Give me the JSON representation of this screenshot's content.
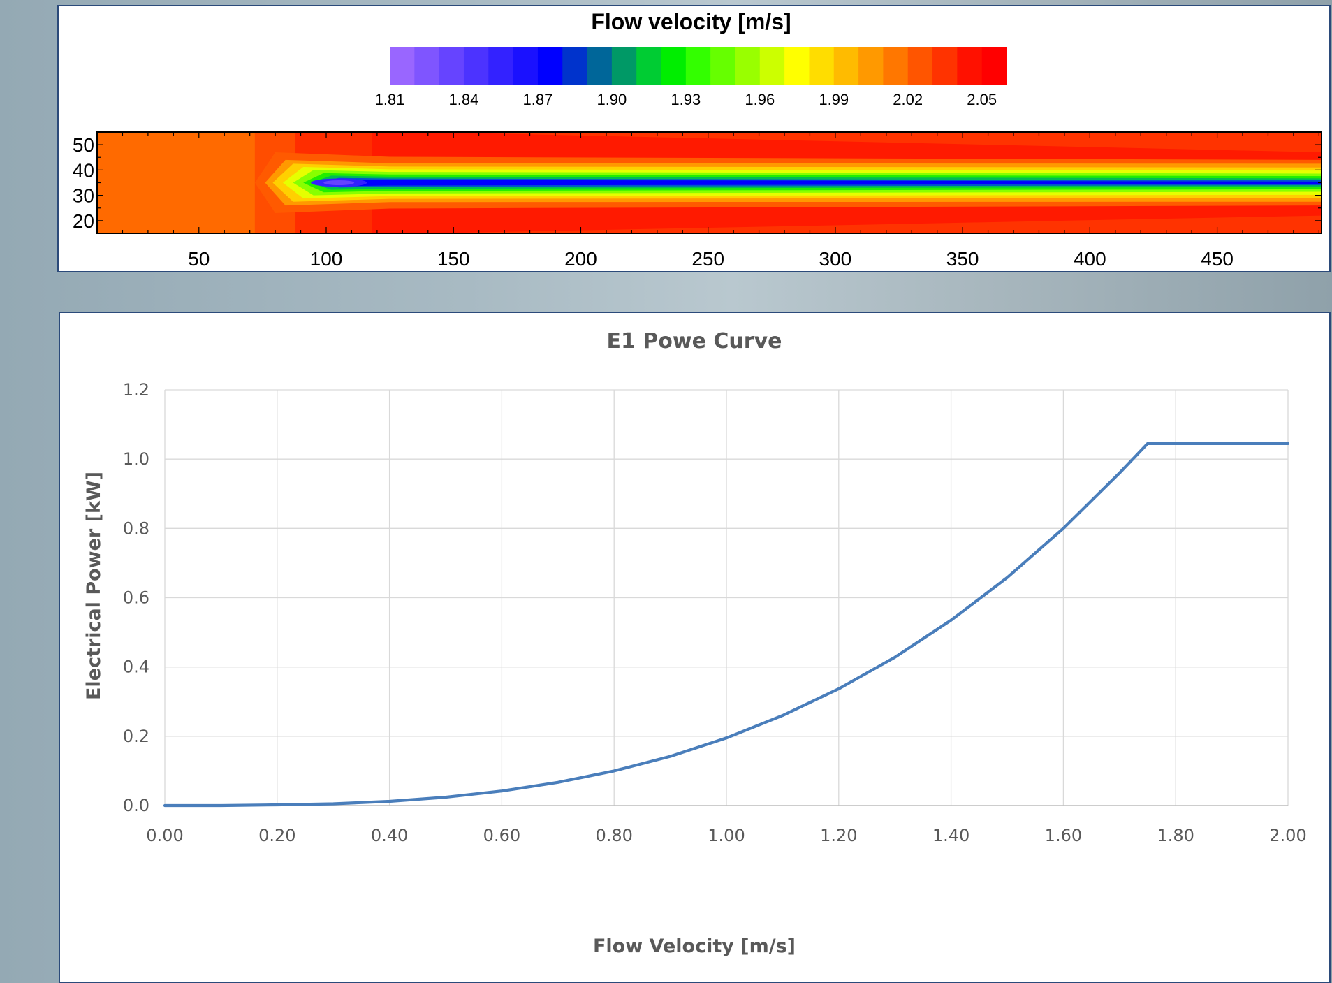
{
  "chart_data": [
    {
      "type": "heatmap",
      "title": "Flow velocity [m/s]",
      "colorbar": {
        "ticks": [
          "1.81",
          "1.84",
          "1.87",
          "1.90",
          "1.93",
          "1.96",
          "1.99",
          "2.02",
          "2.05"
        ],
        "range": [
          1.81,
          2.06
        ],
        "colors": [
          "#9966ff",
          "#7f55ff",
          "#6644ff",
          "#4c33ff",
          "#3322ff",
          "#1a11ff",
          "#0000ff",
          "#0033cc",
          "#006699",
          "#009966",
          "#00cc33",
          "#00ee00",
          "#33ff00",
          "#66ff00",
          "#99ff00",
          "#ccff00",
          "#ffff00",
          "#ffdd00",
          "#ffbb00",
          "#ff9900",
          "#ff7700",
          "#ff5500",
          "#ff3300",
          "#ff1100",
          "#ff0000"
        ]
      },
      "x_ticks": [
        "50",
        "100",
        "150",
        "200",
        "250",
        "300",
        "350",
        "400",
        "450"
      ],
      "x_tick_values": [
        50,
        100,
        150,
        200,
        250,
        300,
        350,
        400,
        450
      ],
      "xlim": [
        10,
        491
      ],
      "y_ticks": [
        "50",
        "40",
        "30",
        "20"
      ],
      "y_tick_values": [
        50,
        40,
        30,
        20
      ],
      "ylim": [
        15,
        55
      ],
      "field": {
        "inlet_velocity": 2.02,
        "freestream_velocity": 2.05,
        "min_velocity": 1.84,
        "wake_centerline_y": 35,
        "wake_start_x": 72,
        "min_velocity_x": 105
      }
    },
    {
      "type": "line",
      "title": "E1 Powe Curve",
      "xlabel": "Flow Velocity [m/s]",
      "ylabel": "Electrical Power [kW]",
      "xlim": [
        0,
        2
      ],
      "ylim": [
        0,
        1.2
      ],
      "x_ticks": [
        "0.00",
        "0.20",
        "0.40",
        "0.60",
        "0.80",
        "1.00",
        "1.20",
        "1.40",
        "1.60",
        "1.80",
        "2.00"
      ],
      "y_ticks": [
        "0.0",
        "0.2",
        "0.4",
        "0.6",
        "0.8",
        "1.0",
        "1.2"
      ],
      "grid": true,
      "color": "#4a7ebb",
      "series": [
        {
          "x": [
            0.0,
            0.1,
            0.2,
            0.3,
            0.4,
            0.5,
            0.6,
            0.7,
            0.8,
            0.9,
            1.0,
            1.1,
            1.2,
            1.3,
            1.4,
            1.5,
            1.6,
            1.7,
            1.75,
            1.8,
            1.9,
            2.0
          ],
          "y": [
            0.0,
            0.0,
            0.002,
            0.005,
            0.012,
            0.024,
            0.042,
            0.067,
            0.1,
            0.142,
            0.195,
            0.26,
            0.337,
            0.428,
            0.535,
            0.658,
            0.8,
            0.96,
            1.045,
            1.045,
            1.045,
            1.045
          ]
        }
      ]
    }
  ]
}
